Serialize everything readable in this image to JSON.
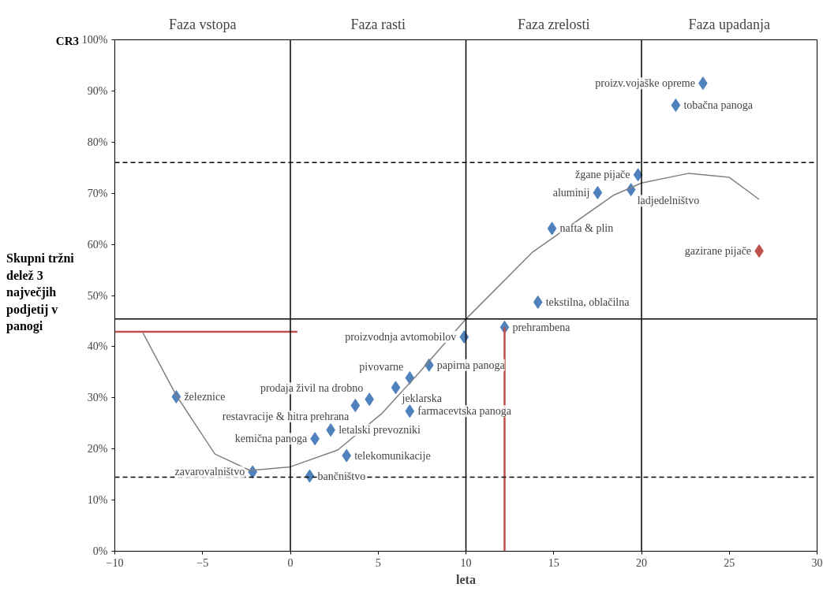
{
  "chart_data": {
    "type": "scatter",
    "xlabel": "leta",
    "ylabel": "Skupni tržni delež 3 največjih podjetij v panogi",
    "xlim": [
      -10,
      30
    ],
    "xticks": [
      -10,
      -5,
      0,
      5,
      10,
      15,
      20,
      25,
      30
    ],
    "ylim": [
      0,
      100
    ],
    "yticks": [
      {
        "value": 0,
        "label": "0%"
      },
      {
        "value": 10,
        "label": "10%"
      },
      {
        "value": 20,
        "label": "20%"
      },
      {
        "value": 30,
        "label": "30%"
      },
      {
        "value": 40,
        "label": "40%"
      },
      {
        "value": 50,
        "label": "50%"
      },
      {
        "value": 60,
        "label": "60%"
      },
      {
        "value": 70,
        "label": "70%"
      },
      {
        "value": 80,
        "label": "80%"
      },
      {
        "value": 90,
        "label": "90%"
      },
      {
        "value": 100,
        "label": "100%"
      }
    ],
    "series": [
      {
        "marker": "diamond",
        "x": [
          -6.5,
          -2.15,
          1.1,
          1.4,
          2.3,
          3.2,
          3.7,
          4.5,
          6.0,
          6.8,
          6.8,
          7.9,
          9.9,
          12.2,
          14.1,
          14.9,
          17.5,
          19.4,
          19.8,
          21.95,
          23.5,
          26.7
        ],
        "values": [
          30.2,
          15.5,
          14.7,
          22.0,
          23.7,
          18.7,
          28.5,
          29.7,
          32.0,
          33.9,
          27.4,
          36.4,
          41.9,
          43.8,
          48.7,
          63.1,
          70.1,
          70.7,
          73.6,
          87.2,
          91.5,
          58.7
        ],
        "colors": [
          "#4f81bd",
          "#4f81bd",
          "#4f81bd",
          "#4f81bd",
          "#4f81bd",
          "#4f81bd",
          "#4f81bd",
          "#4f81bd",
          "#4f81bd",
          "#4f81bd",
          "#4f81bd",
          "#4f81bd",
          "#4f81bd",
          "#4f81bd",
          "#4f81bd",
          "#4f81bd",
          "#4f81bd",
          "#4f81bd",
          "#4f81bd",
          "#4f81bd",
          "#4f81bd",
          "#c0504d"
        ],
        "value_labels": [
          "železnice",
          "zavarovalništvo",
          "bančništvo",
          "kemična panoga",
          "letalski prevozniki",
          "telekomunikacije",
          "restavracije & hitra prehrana",
          "prodaja živil na drobno",
          "jeklarska",
          "pivovarne",
          "farmacevtska panoga",
          "papirna panoga",
          "proizvodnja avtomobilov",
          "prehrambena",
          "tekstilna, oblačilna",
          "nafta & plin",
          "aluminij",
          "ladjedelništvo",
          "žgane pijače",
          "tobačna panoga",
          "proizv.vojaške opreme",
          "gazirane pijače"
        ]
      },
      {
        "type": "line",
        "color": "#808080",
        "x": [
          -8.4,
          -6.5,
          -4.3,
          -2.3,
          0,
          2.7,
          5.2,
          7.3,
          10,
          13.8,
          18.4,
          20,
          22.7,
          25.0,
          26.7
        ],
        "values": [
          42.7,
          30.5,
          19,
          15.8,
          16.5,
          19.8,
          26.9,
          34.8,
          45.4,
          58.5,
          69.6,
          72,
          73.9,
          73.1,
          68.8
        ]
      },
      {
        "type": "line",
        "color": "#c0504d",
        "x": [
          -10,
          0.4
        ],
        "values": [
          42.9,
          42.9
        ]
      },
      {
        "type": "line",
        "color": "#c0504d",
        "x": [
          12.2,
          12.2
        ],
        "values": [
          0,
          43.8
        ]
      }
    ],
    "ref_lines": [
      {
        "axis": "x",
        "value": 0,
        "color": "#000000",
        "line_style": "solid"
      },
      {
        "axis": "x",
        "value": 10,
        "color": "#000000",
        "line_style": "solid"
      },
      {
        "axis": "x",
        "value": 20,
        "color": "#000000",
        "line_style": "solid"
      },
      {
        "axis": "y",
        "value": 45.4,
        "color": "#000000",
        "line_style": "solid"
      },
      {
        "axis": "y",
        "value": 76,
        "color": "#000000",
        "line_style": "dashed"
      },
      {
        "axis": "y",
        "value": 14.5,
        "color": "#000000",
        "line_style": "dashed"
      }
    ],
    "annotations": [
      "CR3",
      "Faza vstopa",
      "Faza rasti",
      "Faza zrelosti",
      "Faza upadanja"
    ]
  }
}
